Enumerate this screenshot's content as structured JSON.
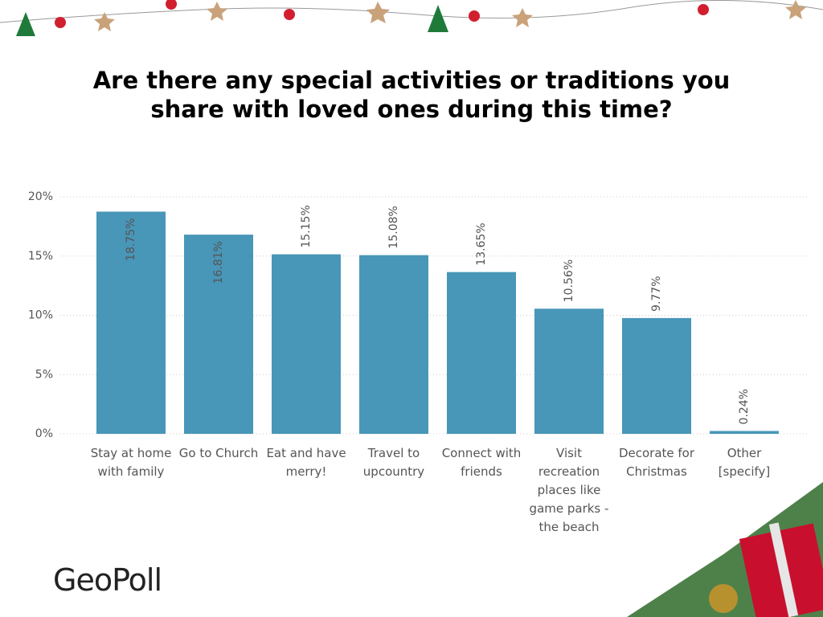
{
  "chart_data": {
    "type": "bar",
    "title": "Are there any special activities or traditions you share with loved ones during this time?",
    "categories": [
      "Stay at home with family",
      "Go to Church",
      "Eat and have merry!",
      "Travel to upcountry",
      "Connect with friends",
      "Visit recreation places like game parks - the beach",
      "Decorate for Christmas",
      "Other [specify]"
    ],
    "values": [
      18.75,
      16.81,
      15.15,
      15.08,
      13.65,
      10.56,
      9.77,
      0.24
    ],
    "value_labels": [
      "18.75%",
      "16.81%",
      "15.15%",
      "15.08%",
      "13.65%",
      "10.56%",
      "9.77%",
      "0.24%"
    ],
    "color": "#4896b8",
    "ylim": [
      0,
      20
    ],
    "yticks": [
      {
        "value": 0,
        "label": "0%"
      },
      {
        "value": 5,
        "label": "5%"
      },
      {
        "value": 10,
        "label": "10%"
      },
      {
        "value": 15,
        "label": "15%"
      },
      {
        "value": 20,
        "label": "20%"
      }
    ],
    "grid": true
  },
  "logo": "GeoPoll"
}
